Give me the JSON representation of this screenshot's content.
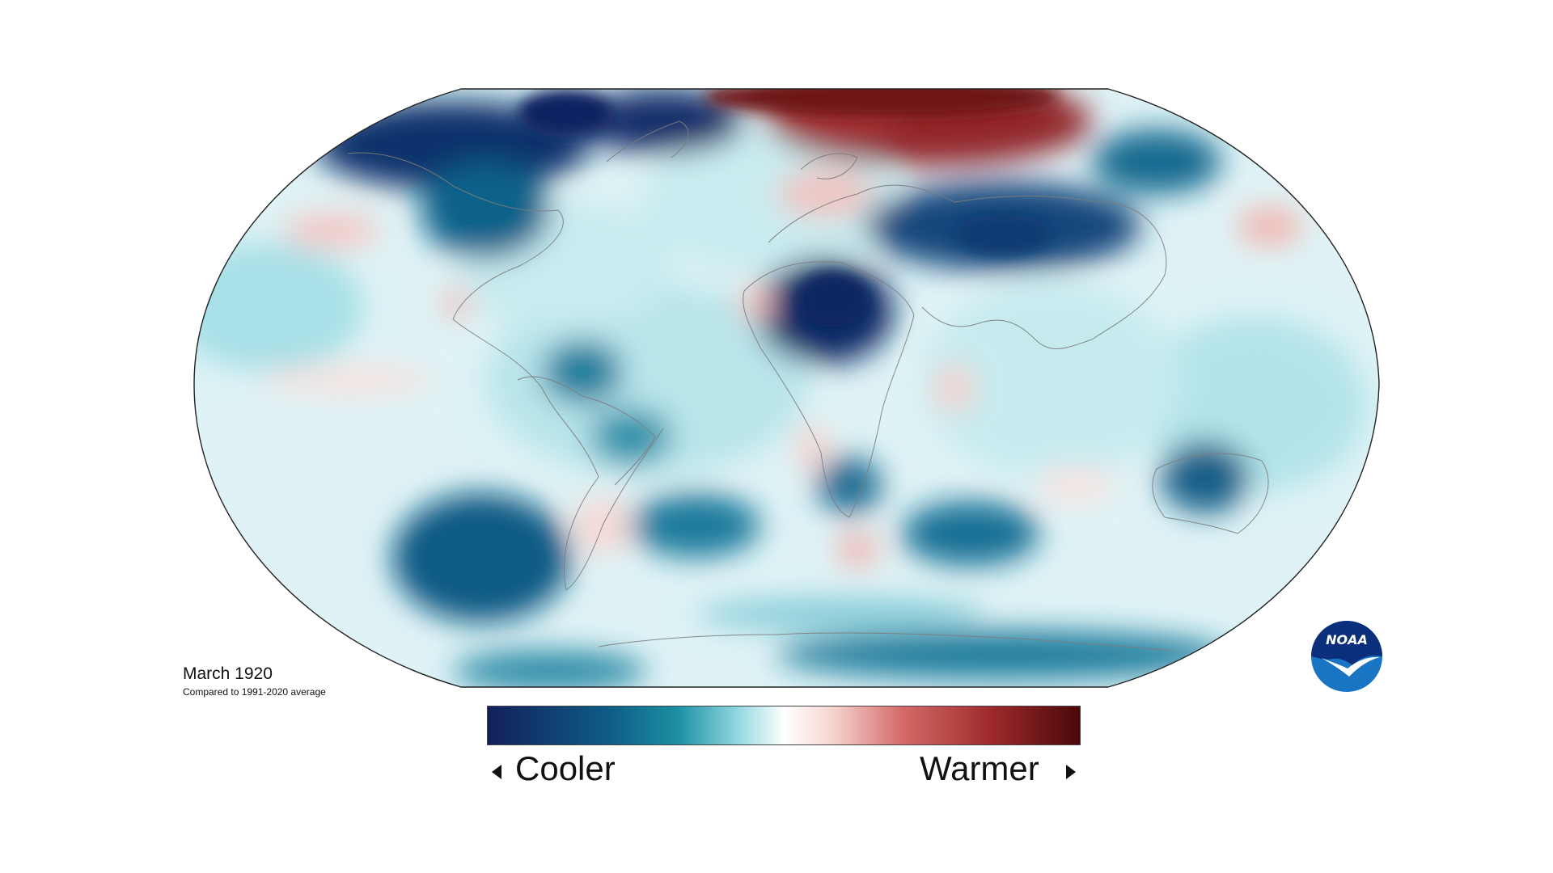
{
  "caption": {
    "title": "March 1920",
    "subtitle": "Compared to 1991-2020 average"
  },
  "legend": {
    "cooler_label": "Cooler",
    "warmer_label": "Warmer",
    "colors": [
      "#12205a",
      "#0e5a86",
      "#1b8fa3",
      "#8fd6df",
      "#e8f7f8",
      "#ffffff",
      "#f6d6d2",
      "#d46b68",
      "#9e2a2b",
      "#4a0808"
    ]
  },
  "logo": {
    "text": "NOAA",
    "colors": {
      "outer": "#1a74c4",
      "inner": "#0b2f7a",
      "bird": "#ffffff"
    }
  },
  "map": {
    "ocean_base_color": "#dff3f6",
    "cooler_icon": "left-triangle-icon",
    "warmer_icon": "right-triangle-icon"
  }
}
